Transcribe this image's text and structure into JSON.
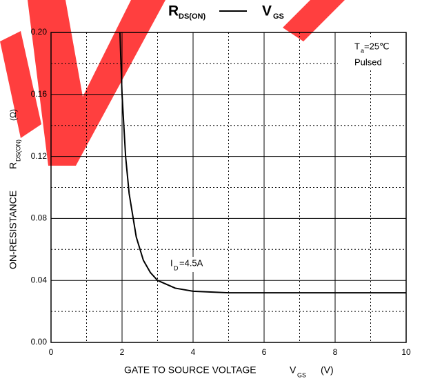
{
  "chart_data": {
    "type": "line",
    "title": {
      "left": "R",
      "left_sub": "DS(ON)",
      "right": "V",
      "right_sub": "GS"
    },
    "x_label": {
      "text": "GATE TO SOURCE VOLTAGE",
      "symbol": "V",
      "symbol_sub": "GS",
      "unit": "(V)"
    },
    "y_label": {
      "text": "ON-RESISTANCE",
      "symbol": "R",
      "symbol_sub": "DS(ON)",
      "unit": "(Ω)"
    },
    "annotations": {
      "temp": "T",
      "temp_sub": "a",
      "temp_value": "=25℃",
      "mode": "Pulsed",
      "current": "I",
      "current_sub": "D",
      "current_value": "=4.5A"
    },
    "xlim": [
      0,
      10
    ],
    "ylim": [
      0,
      0.2
    ],
    "xticks": [
      0,
      2,
      4,
      6,
      8,
      10
    ],
    "yticks": [
      {
        "value": 0,
        "label": "0.00"
      },
      0.04,
      0.08,
      0.12,
      0.16,
      {
        "value": 0.2,
        "label": "0.20"
      }
    ],
    "xticks_minor": [
      1,
      3,
      5,
      7,
      9
    ],
    "yticks_minor": [
      0.02,
      0.06,
      0.1,
      0.14,
      0.18
    ],
    "grid": true,
    "series": [
      {
        "color": "#000000",
        "x": [
          1.94,
          2.0,
          2.1,
          2.2,
          2.4,
          2.6,
          2.8,
          3.0,
          3.5,
          4.0,
          5.0,
          10.0
        ],
        "values": [
          0.2,
          0.16,
          0.12,
          0.096,
          0.068,
          0.053,
          0.045,
          0.04,
          0.035,
          0.033,
          0.032,
          0.032
        ]
      }
    ]
  }
}
